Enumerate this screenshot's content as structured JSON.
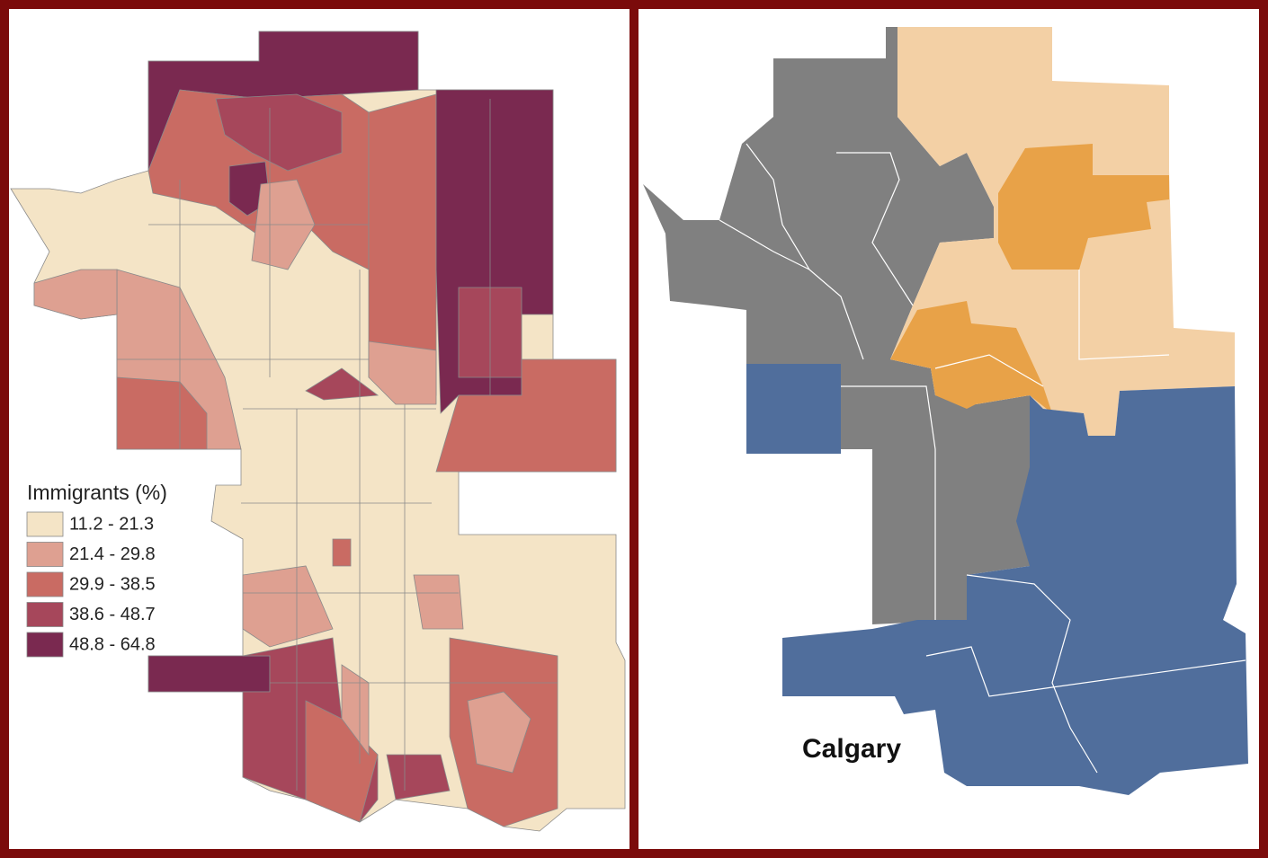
{
  "legend": {
    "title": "Immigrants (%)",
    "items": [
      {
        "label": "11.2 - 21.3",
        "color": "#f4e4c6"
      },
      {
        "label": "21.4 - 29.8",
        "color": "#dea091"
      },
      {
        "label": "29.9 - 38.5",
        "color": "#c96b63"
      },
      {
        "label": "38.6 - 48.7",
        "color": "#a6475b"
      },
      {
        "label": "48.8 - 64.8",
        "color": "#7a2950"
      }
    ]
  },
  "map_label": "Calgary"
}
